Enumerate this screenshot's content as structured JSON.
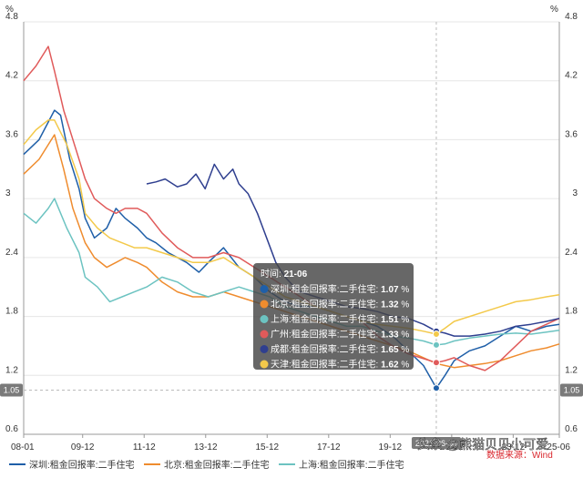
{
  "chart_data": {
    "type": "line",
    "unit_left": "%",
    "unit_right": "%",
    "y_ticks": [
      "0.6",
      "1.2",
      "1.8",
      "2.4",
      "3",
      "3.6",
      "4.2",
      "4.8"
    ],
    "ylim": [
      0.6,
      4.8
    ],
    "x_ticks": [
      "08-01",
      "09-12",
      "11-12",
      "13-12",
      "15-12",
      "17-12",
      "19-12",
      "21-12",
      "23-12",
      "25-06"
    ],
    "x_tick_positions": [
      2008.0,
      2009.917,
      2011.917,
      2013.917,
      2015.917,
      2017.917,
      2019.917,
      2021.917,
      2023.917,
      2025.417
    ],
    "xlim": [
      2008.0,
      2025.417
    ],
    "grid": true,
    "legend_position": "bottom",
    "crosshair": {
      "x": 2021.417,
      "date_label": "2021-06-30",
      "value_label": "1.05",
      "value": 1.05
    },
    "tooltip": {
      "title_prefix": "时间: ",
      "title_value": "21-06",
      "rows": [
        {
          "label": "深圳:租金回报率:二手住宅: ",
          "value": "1.07",
          "unit": " %"
        },
        {
          "label": "北京:租金回报率:二手住宅: ",
          "value": "1.32",
          "unit": " %"
        },
        {
          "label": "上海:租金回报率:二手住宅: ",
          "value": "1.51",
          "unit": " %"
        },
        {
          "label": "广州:租金回报率:二手住宅: ",
          "value": "1.33",
          "unit": " %"
        },
        {
          "label": "成都:租金回报率:二手住宅: ",
          "value": "1.65",
          "unit": " %"
        },
        {
          "label": "天津:租金回报率:二手住宅: ",
          "value": "1.62",
          "unit": " %"
        }
      ]
    },
    "series": [
      {
        "name": "深圳:租金回报率:二手住宅",
        "color": "#1f5fa8",
        "in_legend": true,
        "x": [
          2008.0,
          2008.5,
          2009.0,
          2009.2,
          2009.5,
          2009.8,
          2010.0,
          2010.3,
          2010.7,
          2011.0,
          2011.3,
          2011.7,
          2012.0,
          2012.3,
          2012.7,
          2013.0,
          2013.3,
          2013.7,
          2014.0,
          2014.5,
          2015.0,
          2015.5,
          2016.0,
          2016.5,
          2017.0,
          2017.5,
          2018.0,
          2018.5,
          2019.0,
          2019.5,
          2020.0,
          2020.5,
          2021.0,
          2021.417,
          2021.7,
          2022.0,
          2022.5,
          2023.0,
          2023.5,
          2024.0,
          2024.5,
          2025.0,
          2025.417
        ],
        "y": [
          3.45,
          3.6,
          3.9,
          3.85,
          3.4,
          3.1,
          2.8,
          2.6,
          2.7,
          2.9,
          2.8,
          2.7,
          2.6,
          2.55,
          2.45,
          2.4,
          2.35,
          2.25,
          2.35,
          2.5,
          2.3,
          2.2,
          2.05,
          1.95,
          1.9,
          1.9,
          1.85,
          1.8,
          1.75,
          1.7,
          1.6,
          1.45,
          1.3,
          1.07,
          1.2,
          1.35,
          1.45,
          1.5,
          1.6,
          1.7,
          1.65,
          1.7,
          1.72
        ]
      },
      {
        "name": "北京:租金回报率:二手住宅",
        "color": "#ef8c2e",
        "in_legend": true,
        "x": [
          2008.0,
          2008.5,
          2009.0,
          2009.3,
          2009.6,
          2010.0,
          2010.3,
          2010.7,
          2011.0,
          2011.3,
          2011.7,
          2012.0,
          2012.5,
          2013.0,
          2013.5,
          2014.0,
          2014.5,
          2015.0,
          2015.5,
          2016.0,
          2016.5,
          2017.0,
          2017.5,
          2018.0,
          2018.5,
          2019.0,
          2019.5,
          2020.0,
          2020.5,
          2021.0,
          2021.417,
          2021.7,
          2022.0,
          2022.5,
          2023.0,
          2023.5,
          2024.0,
          2024.5,
          2025.0,
          2025.417
        ],
        "y": [
          3.25,
          3.4,
          3.65,
          3.3,
          2.9,
          2.55,
          2.4,
          2.3,
          2.35,
          2.4,
          2.35,
          2.3,
          2.15,
          2.05,
          2.0,
          2.0,
          2.05,
          2.0,
          1.95,
          1.9,
          1.85,
          1.8,
          1.75,
          1.7,
          1.65,
          1.6,
          1.55,
          1.5,
          1.45,
          1.38,
          1.32,
          1.3,
          1.28,
          1.3,
          1.32,
          1.35,
          1.4,
          1.45,
          1.48,
          1.52
        ]
      },
      {
        "name": "上海:租金回报率:二手住宅",
        "color": "#6cc3c1",
        "in_legend": true,
        "x": [
          2008.0,
          2008.4,
          2008.8,
          2009.0,
          2009.4,
          2009.8,
          2010.0,
          2010.4,
          2010.8,
          2011.2,
          2011.6,
          2012.0,
          2012.5,
          2013.0,
          2013.5,
          2014.0,
          2014.5,
          2015.0,
          2015.5,
          2016.0,
          2016.5,
          2017.0,
          2017.5,
          2018.0,
          2018.5,
          2019.0,
          2019.5,
          2020.0,
          2020.5,
          2021.0,
          2021.417,
          2021.7,
          2022.0,
          2022.5,
          2023.0,
          2023.5,
          2024.0,
          2024.5,
          2025.0,
          2025.417
        ],
        "y": [
          2.85,
          2.75,
          2.9,
          3.0,
          2.7,
          2.45,
          2.2,
          2.1,
          1.95,
          2.0,
          2.05,
          2.1,
          2.2,
          2.15,
          2.05,
          2.0,
          2.05,
          2.1,
          2.05,
          2.0,
          1.9,
          1.85,
          1.8,
          1.75,
          1.7,
          1.7,
          1.65,
          1.6,
          1.58,
          1.55,
          1.51,
          1.52,
          1.55,
          1.58,
          1.6,
          1.62,
          1.63,
          1.62,
          1.64,
          1.66
        ]
      },
      {
        "name": "广州:租金回报率:二手住宅",
        "color": "#e05a5a",
        "in_legend": false,
        "x": [
          2008.0,
          2008.4,
          2008.8,
          2009.0,
          2009.3,
          2009.7,
          2010.0,
          2010.3,
          2010.7,
          2011.0,
          2011.3,
          2011.7,
          2012.0,
          2012.5,
          2013.0,
          2013.5,
          2014.0,
          2014.5,
          2015.0,
          2015.5,
          2016.0,
          2016.5,
          2017.0,
          2017.5,
          2018.0,
          2018.5,
          2019.0,
          2019.5,
          2020.0,
          2020.5,
          2021.0,
          2021.417,
          2021.7,
          2022.0,
          2022.5,
          2023.0,
          2023.5,
          2024.0,
          2024.5,
          2025.0,
          2025.417
        ],
        "y": [
          4.2,
          4.35,
          4.55,
          4.3,
          3.9,
          3.5,
          3.2,
          3.0,
          2.9,
          2.85,
          2.9,
          2.9,
          2.85,
          2.65,
          2.5,
          2.4,
          2.4,
          2.45,
          2.4,
          2.3,
          2.2,
          2.1,
          2.0,
          1.9,
          1.85,
          1.8,
          1.75,
          1.6,
          1.5,
          1.42,
          1.37,
          1.33,
          1.35,
          1.38,
          1.3,
          1.25,
          1.35,
          1.5,
          1.65,
          1.72,
          1.78
        ]
      },
      {
        "name": "成都:租金回报率:二手住宅",
        "color": "#2f3f8f",
        "in_legend": false,
        "x": [
          2012.0,
          2012.3,
          2012.6,
          2013.0,
          2013.3,
          2013.6,
          2013.9,
          2014.2,
          2014.5,
          2014.8,
          2015.0,
          2015.3,
          2015.6,
          2015.9,
          2016.2,
          2016.5,
          2016.8,
          2017.0,
          2017.5,
          2018.0,
          2018.5,
          2019.0,
          2019.5,
          2020.0,
          2020.5,
          2021.0,
          2021.417,
          2021.7,
          2022.0,
          2022.5,
          2023.0,
          2023.5,
          2024.0,
          2024.5,
          2025.0,
          2025.417
        ],
        "y": [
          3.15,
          3.17,
          3.2,
          3.12,
          3.15,
          3.25,
          3.1,
          3.35,
          3.2,
          3.3,
          3.15,
          3.05,
          2.85,
          2.6,
          2.35,
          2.2,
          2.1,
          2.05,
          2.0,
          1.95,
          1.9,
          1.88,
          1.85,
          1.8,
          1.78,
          1.72,
          1.65,
          1.63,
          1.6,
          1.6,
          1.62,
          1.65,
          1.7,
          1.72,
          1.75,
          1.78
        ]
      },
      {
        "name": "天津:租金回报率:二手住宅",
        "color": "#f3c94a",
        "in_legend": false,
        "x": [
          2008.0,
          2008.4,
          2008.8,
          2009.0,
          2009.4,
          2009.8,
          2010.0,
          2010.4,
          2010.8,
          2011.2,
          2011.6,
          2012.0,
          2012.5,
          2013.0,
          2013.5,
          2014.0,
          2014.5,
          2015.0,
          2015.5,
          2016.0,
          2016.5,
          2017.0,
          2017.5,
          2018.0,
          2018.5,
          2019.0,
          2019.5,
          2020.0,
          2020.5,
          2021.0,
          2021.417,
          2021.7,
          2022.0,
          2022.5,
          2023.0,
          2023.5,
          2024.0,
          2024.5,
          2025.0,
          2025.417
        ],
        "y": [
          3.55,
          3.7,
          3.8,
          3.8,
          3.55,
          3.2,
          2.85,
          2.7,
          2.6,
          2.55,
          2.5,
          2.5,
          2.45,
          2.4,
          2.35,
          2.35,
          2.4,
          2.3,
          2.2,
          2.1,
          2.0,
          1.95,
          1.9,
          1.85,
          1.8,
          1.75,
          1.72,
          1.7,
          1.68,
          1.65,
          1.62,
          1.68,
          1.75,
          1.8,
          1.85,
          1.9,
          1.95,
          1.97,
          2.0,
          2.02
        ]
      }
    ]
  },
  "watermark": {
    "brand": "头条 @熊猫贝贝小可爱",
    "source": "数据来源：Wind"
  }
}
